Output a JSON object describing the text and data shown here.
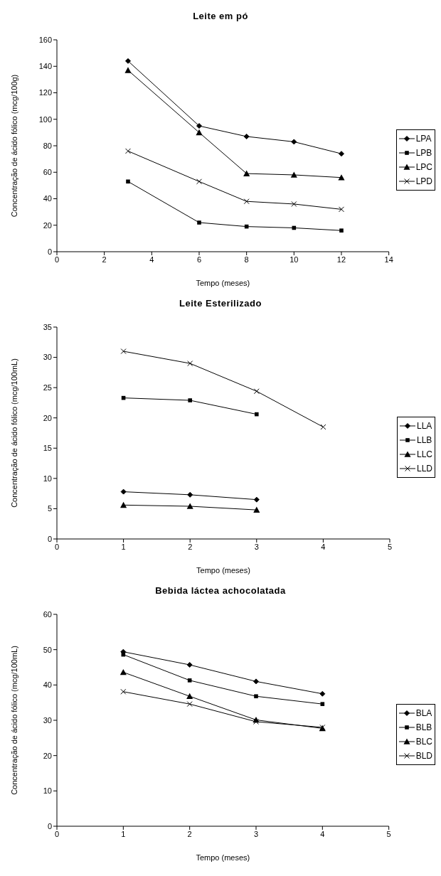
{
  "chart_data": [
    {
      "type": "line",
      "title": "Leite em pó",
      "xlabel": "Tempo (meses)",
      "ylabel": "Concentração de ácido fólico (mcg/100g)",
      "x": [
        3,
        6,
        8,
        10,
        12
      ],
      "xlim": [
        0,
        14
      ],
      "xticks": [
        0,
        2,
        4,
        6,
        8,
        10,
        12,
        14
      ],
      "ylim": [
        0,
        160
      ],
      "yticks": [
        0,
        20,
        40,
        60,
        80,
        100,
        120,
        140,
        160
      ],
      "grid": false,
      "legend": "right",
      "line_style": "solid",
      "series": [
        {
          "name": "LPA",
          "color": "#000000",
          "marker": "diamond",
          "values": [
            144,
            95,
            87,
            83,
            74
          ]
        },
        {
          "name": "LPB",
          "color": "#000000",
          "marker": "square",
          "values": [
            53,
            22,
            19,
            18,
            16
          ]
        },
        {
          "name": "LPC",
          "color": "#000000",
          "marker": "triangle",
          "values": [
            137,
            90,
            59,
            58,
            56
          ]
        },
        {
          "name": "LPD",
          "color": "#000000",
          "marker": "cross",
          "values": [
            76,
            53,
            38,
            36,
            32
          ]
        }
      ]
    },
    {
      "type": "line",
      "title": "Leite Esterilizado",
      "xlabel": "Tempo (meses)",
      "ylabel": "Concentração de ácido fólico (mcg/100mL)",
      "x": [
        1,
        2,
        3,
        4
      ],
      "xlim": [
        0,
        5
      ],
      "xticks": [
        0,
        1,
        2,
        3,
        4,
        5
      ],
      "ylim": [
        0,
        35
      ],
      "yticks": [
        0,
        5,
        10,
        15,
        20,
        25,
        30,
        35
      ],
      "grid": false,
      "legend": "right",
      "line_style": "solid",
      "series": [
        {
          "name": "LLA",
          "color": "#000000",
          "marker": "diamond",
          "values": [
            7.8,
            7.3,
            6.5,
            null
          ]
        },
        {
          "name": "LLB",
          "color": "#000000",
          "marker": "square",
          "values": [
            23.3,
            22.9,
            20.6,
            null
          ]
        },
        {
          "name": "LLC",
          "color": "#000000",
          "marker": "triangle",
          "values": [
            5.6,
            5.4,
            4.8,
            null
          ]
        },
        {
          "name": "LLD",
          "color": "#000000",
          "marker": "cross",
          "values": [
            31,
            29,
            24.4,
            18.5
          ]
        }
      ]
    },
    {
      "type": "line",
      "title": "Bebida láctea achocolatada",
      "xlabel": "Tempo (meses)",
      "ylabel": "Concentração de ácido fólico (mcg/100mL)",
      "x": [
        1,
        2,
        3,
        4
      ],
      "xlim": [
        0,
        5
      ],
      "xticks": [
        0,
        1,
        2,
        3,
        4,
        5
      ],
      "ylim": [
        0,
        60
      ],
      "yticks": [
        0,
        10,
        20,
        30,
        40,
        50,
        60
      ],
      "grid": false,
      "legend": "right",
      "line_style": "solid",
      "series": [
        {
          "name": "BLA",
          "color": "#000000",
          "marker": "diamond",
          "values": [
            49.4,
            45.7,
            41,
            37.5
          ]
        },
        {
          "name": "BLB",
          "color": "#000000",
          "marker": "square",
          "values": [
            48.6,
            41.3,
            36.8,
            34.6
          ]
        },
        {
          "name": "BLC",
          "color": "#000000",
          "marker": "triangle",
          "values": [
            43.6,
            36.8,
            30.1,
            27.7
          ]
        },
        {
          "name": "BLD",
          "color": "#000000",
          "marker": "cross",
          "values": [
            38.1,
            34.6,
            29.6,
            28.0
          ]
        }
      ]
    }
  ]
}
